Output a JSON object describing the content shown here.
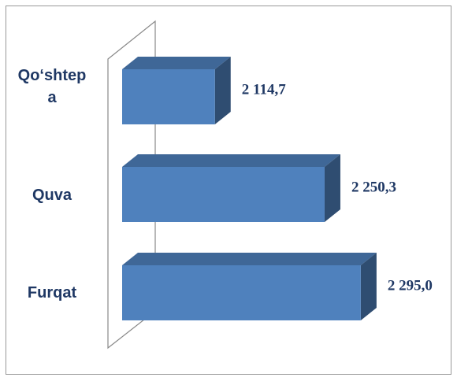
{
  "chart_data": {
    "type": "bar3d_horizontal",
    "categories": [
      "Qo‘shtepa",
      "Quva",
      "Furqat"
    ],
    "values": [
      2114.7,
      2250.3,
      2295.0
    ],
    "value_labels": [
      "2 114,7",
      "2 250,3",
      "2 295,0"
    ],
    "color": "#4f81bd",
    "xlim": [
      2000,
      2300
    ]
  }
}
